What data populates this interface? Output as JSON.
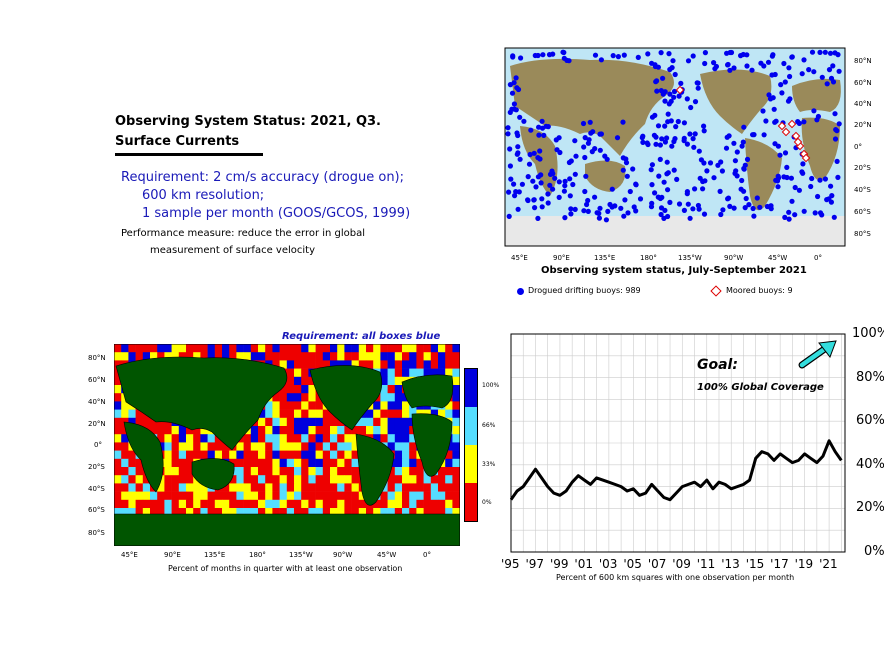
{
  "header": {
    "title_line1": "Observing System Status:  2021, Q3.",
    "title_line2": "Surface Currents"
  },
  "requirement": {
    "line1": "Requirement: 2 cm/s accuracy (drogue on);",
    "line2": "600 km resolution;",
    "line3": "1 sample per month (GOOS/GCOS, 1999)"
  },
  "performance": {
    "line1": "Performance measure: reduce the error in global",
    "line2": "measurement of surface velocity"
  },
  "status_map": {
    "caption": "Observing system status, July-September 2021",
    "lon_ticks": [
      "45°E",
      "90°E",
      "135°E",
      "180°",
      "135°W",
      "90°W",
      "45°W",
      "0°"
    ],
    "lat_ticks": [
      "80°N",
      "60°N",
      "40°N",
      "20°N",
      "0°",
      "20°S",
      "40°S",
      "60°S",
      "80°S"
    ],
    "legend_drifters": "Drogued drifting buoys: 989",
    "legend_moored": "Moored buoys: 9",
    "drifter_color": "#0000ee",
    "moored_color": "#dd0000"
  },
  "coverage_map": {
    "requirement_label": "Requirement: all boxes blue",
    "caption": "Percent of months in quarter with at least one observation",
    "lon_ticks": [
      "45°E",
      "90°E",
      "135°E",
      "180°",
      "135°W",
      "90°W",
      "45°W",
      "0°"
    ],
    "lat_ticks": [
      "80°N",
      "60°N",
      "40°N",
      "20°N",
      "0°",
      "20°S",
      "40°S",
      "60°S",
      "80°S"
    ],
    "colorbar_labels": [
      "100%",
      "66%",
      "33%",
      "0%"
    ],
    "colorbar_colors": [
      "#0000dd",
      "#55ddff",
      "#ffff00",
      "#ee0000"
    ],
    "land_color": "#005500"
  },
  "chart_data": {
    "type": "line",
    "title": "",
    "xlabel": "Percent of 600 km squares with one observation per month",
    "ylabel": "",
    "x_ticks": [
      "'95",
      "'97",
      "'99",
      "'01",
      "'03",
      "'05",
      "'07",
      "'09",
      "'11",
      "'13",
      "'15",
      "'17",
      "'19",
      "'21"
    ],
    "y_ticks": [
      "0%",
      "20%",
      "40%",
      "60%",
      "80%",
      "100%"
    ],
    "ylim": [
      0,
      100
    ],
    "xlim": [
      1995,
      2022.3
    ],
    "grid": true,
    "goal_title": "Goal:",
    "goal_text": "100% Global Coverage",
    "series": [
      {
        "x": [
          1995.0,
          1995.5,
          1996.0,
          1996.5,
          1997.0,
          1997.5,
          1998.0,
          1998.5,
          1999.0,
          1999.5,
          2000.0,
          2000.5,
          2001.0,
          2001.5,
          2002.0,
          2002.5,
          2003.0,
          2003.5,
          2004.0,
          2004.5,
          2005.0,
          2005.5,
          2006.0,
          2006.5,
          2007.0,
          2007.5,
          2008.0,
          2008.5,
          2009.0,
          2009.5,
          2010.0,
          2010.5,
          2011.0,
          2011.5,
          2012.0,
          2012.5,
          2013.0,
          2013.5,
          2014.0,
          2014.5,
          2015.0,
          2015.5,
          2016.0,
          2016.5,
          2017.0,
          2017.5,
          2018.0,
          2018.5,
          2019.0,
          2019.5,
          2020.0,
          2020.5,
          2021.0,
          2021.5,
          2022.0
        ],
        "values": [
          24,
          28,
          30,
          34,
          38,
          34,
          30,
          27,
          26,
          28,
          32,
          35,
          33,
          31,
          34,
          33,
          32,
          31,
          30,
          28,
          29,
          26,
          27,
          31,
          28,
          25,
          24,
          27,
          30,
          31,
          32,
          30,
          33,
          29,
          32,
          31,
          29,
          30,
          31,
          33,
          43,
          46,
          45,
          42,
          45,
          43,
          41,
          42,
          45,
          43,
          41,
          44,
          51,
          46,
          42
        ]
      }
    ]
  }
}
